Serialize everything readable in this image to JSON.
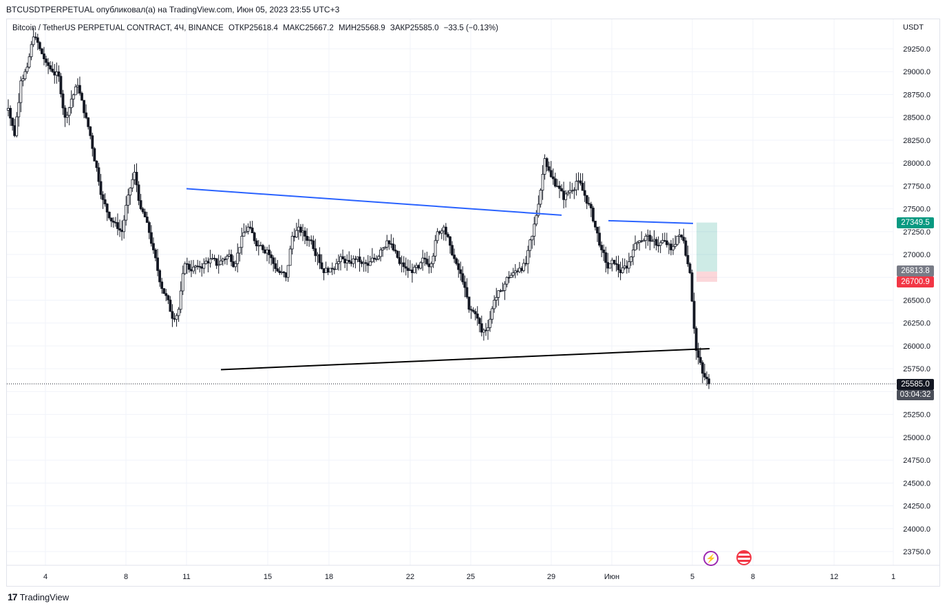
{
  "caption": "BTCUSDTPERPETUAL опубликовал(а) на TradingView.com, Июн 05, 2023 23:55 UTC+3",
  "legend": {
    "symbol": "Bitcoin / TetherUS PERPETUAL CONTRACT, 4Ч, BINANCE",
    "open": "ОТКР25618.4",
    "high": "МАКС25667.2",
    "low": "МИН25568.9",
    "close": "ЗАКР25585.0",
    "change": "−33.5 (−0.13%)"
  },
  "currency": "USDT",
  "footer_brand": "TradingView",
  "price_labels": {
    "target": "27349.5",
    "entry": "26813.8",
    "stop": "26700.9",
    "last": "25585.0",
    "countdown": "03:04:32"
  },
  "colors": {
    "up": "#ffffff",
    "down": "#131722",
    "target_bg": "#089981",
    "entry_bg": "#787b86",
    "stop_bg": "#f23645",
    "last_bg": "#131722",
    "trend_blue": "#2962ff",
    "trend_black": "#000000"
  },
  "chart_data": {
    "type": "candlestick",
    "ylim": [
      23600,
      29500
    ],
    "y_ticks": [
      "29250.0",
      "29000.0",
      "28750.0",
      "28500.0",
      "28250.0",
      "28000.0",
      "27750.0",
      "27500.0",
      "27250.0",
      "27000.0",
      "26750.0",
      "26500.0",
      "26250.0",
      "26000.0",
      "25750.0",
      "25500.0",
      "25250.0",
      "25000.0",
      "24750.0",
      "24500.0",
      "24250.0",
      "24000.0",
      "23750.0"
    ],
    "x_ticks": [
      "4",
      "8",
      "11",
      "15",
      "18",
      "22",
      "25",
      "29",
      "Июн",
      "5",
      "8",
      "12",
      "1"
    ],
    "close_path": [
      28600,
      28300,
      28900,
      29050,
      29380,
      29250,
      29100,
      29000,
      28950,
      28500,
      28700,
      28850,
      28550,
      28300,
      27950,
      27600,
      27400,
      27350,
      27250,
      27650,
      27900,
      27500,
      27350,
      27050,
      26700,
      26550,
      26300,
      26400,
      26900,
      26820,
      26870,
      26900,
      26950,
      26880,
      26950,
      27000,
      26900,
      27200,
      27300,
      27150,
      27100,
      27050,
      26900,
      26800,
      26750,
      27200,
      27300,
      27200,
      27150,
      27000,
      26800,
      26850,
      26900,
      26950,
      26920,
      26950,
      26900,
      26880,
      26950,
      27050,
      27150,
      27050,
      26900,
      26850,
      26800,
      26850,
      26950,
      26900,
      27250,
      27300,
      27100,
      26900,
      26700,
      26400,
      26350,
      26150,
      26200,
      26500,
      26600,
      26750,
      26800,
      26850,
      26900,
      27200,
      27550,
      28050,
      27850,
      27750,
      27600,
      27700,
      27800,
      27700,
      27550,
      27300,
      27050,
      26850,
      26900,
      26800,
      26850,
      27050,
      27150,
      27200,
      27150,
      27100,
      27150,
      27050,
      27200,
      27150,
      26800,
      25950,
      25700,
      25585
    ],
    "trendlines": [
      {
        "name": "upper-resistance",
        "from": [
          "11",
          27720
        ],
        "to": [
          "29",
          27430
        ]
      },
      {
        "name": "recent-high",
        "from": [
          "Июн",
          27370
        ],
        "to": [
          "5",
          27340
        ]
      },
      {
        "name": "support-neckline",
        "from": [
          "12.5",
          25740
        ],
        "to": [
          "5",
          25970
        ]
      }
    ],
    "position": {
      "target": 27349.5,
      "entry": 26813.8,
      "stop": 26700.9
    },
    "last_price": 25585.0
  }
}
